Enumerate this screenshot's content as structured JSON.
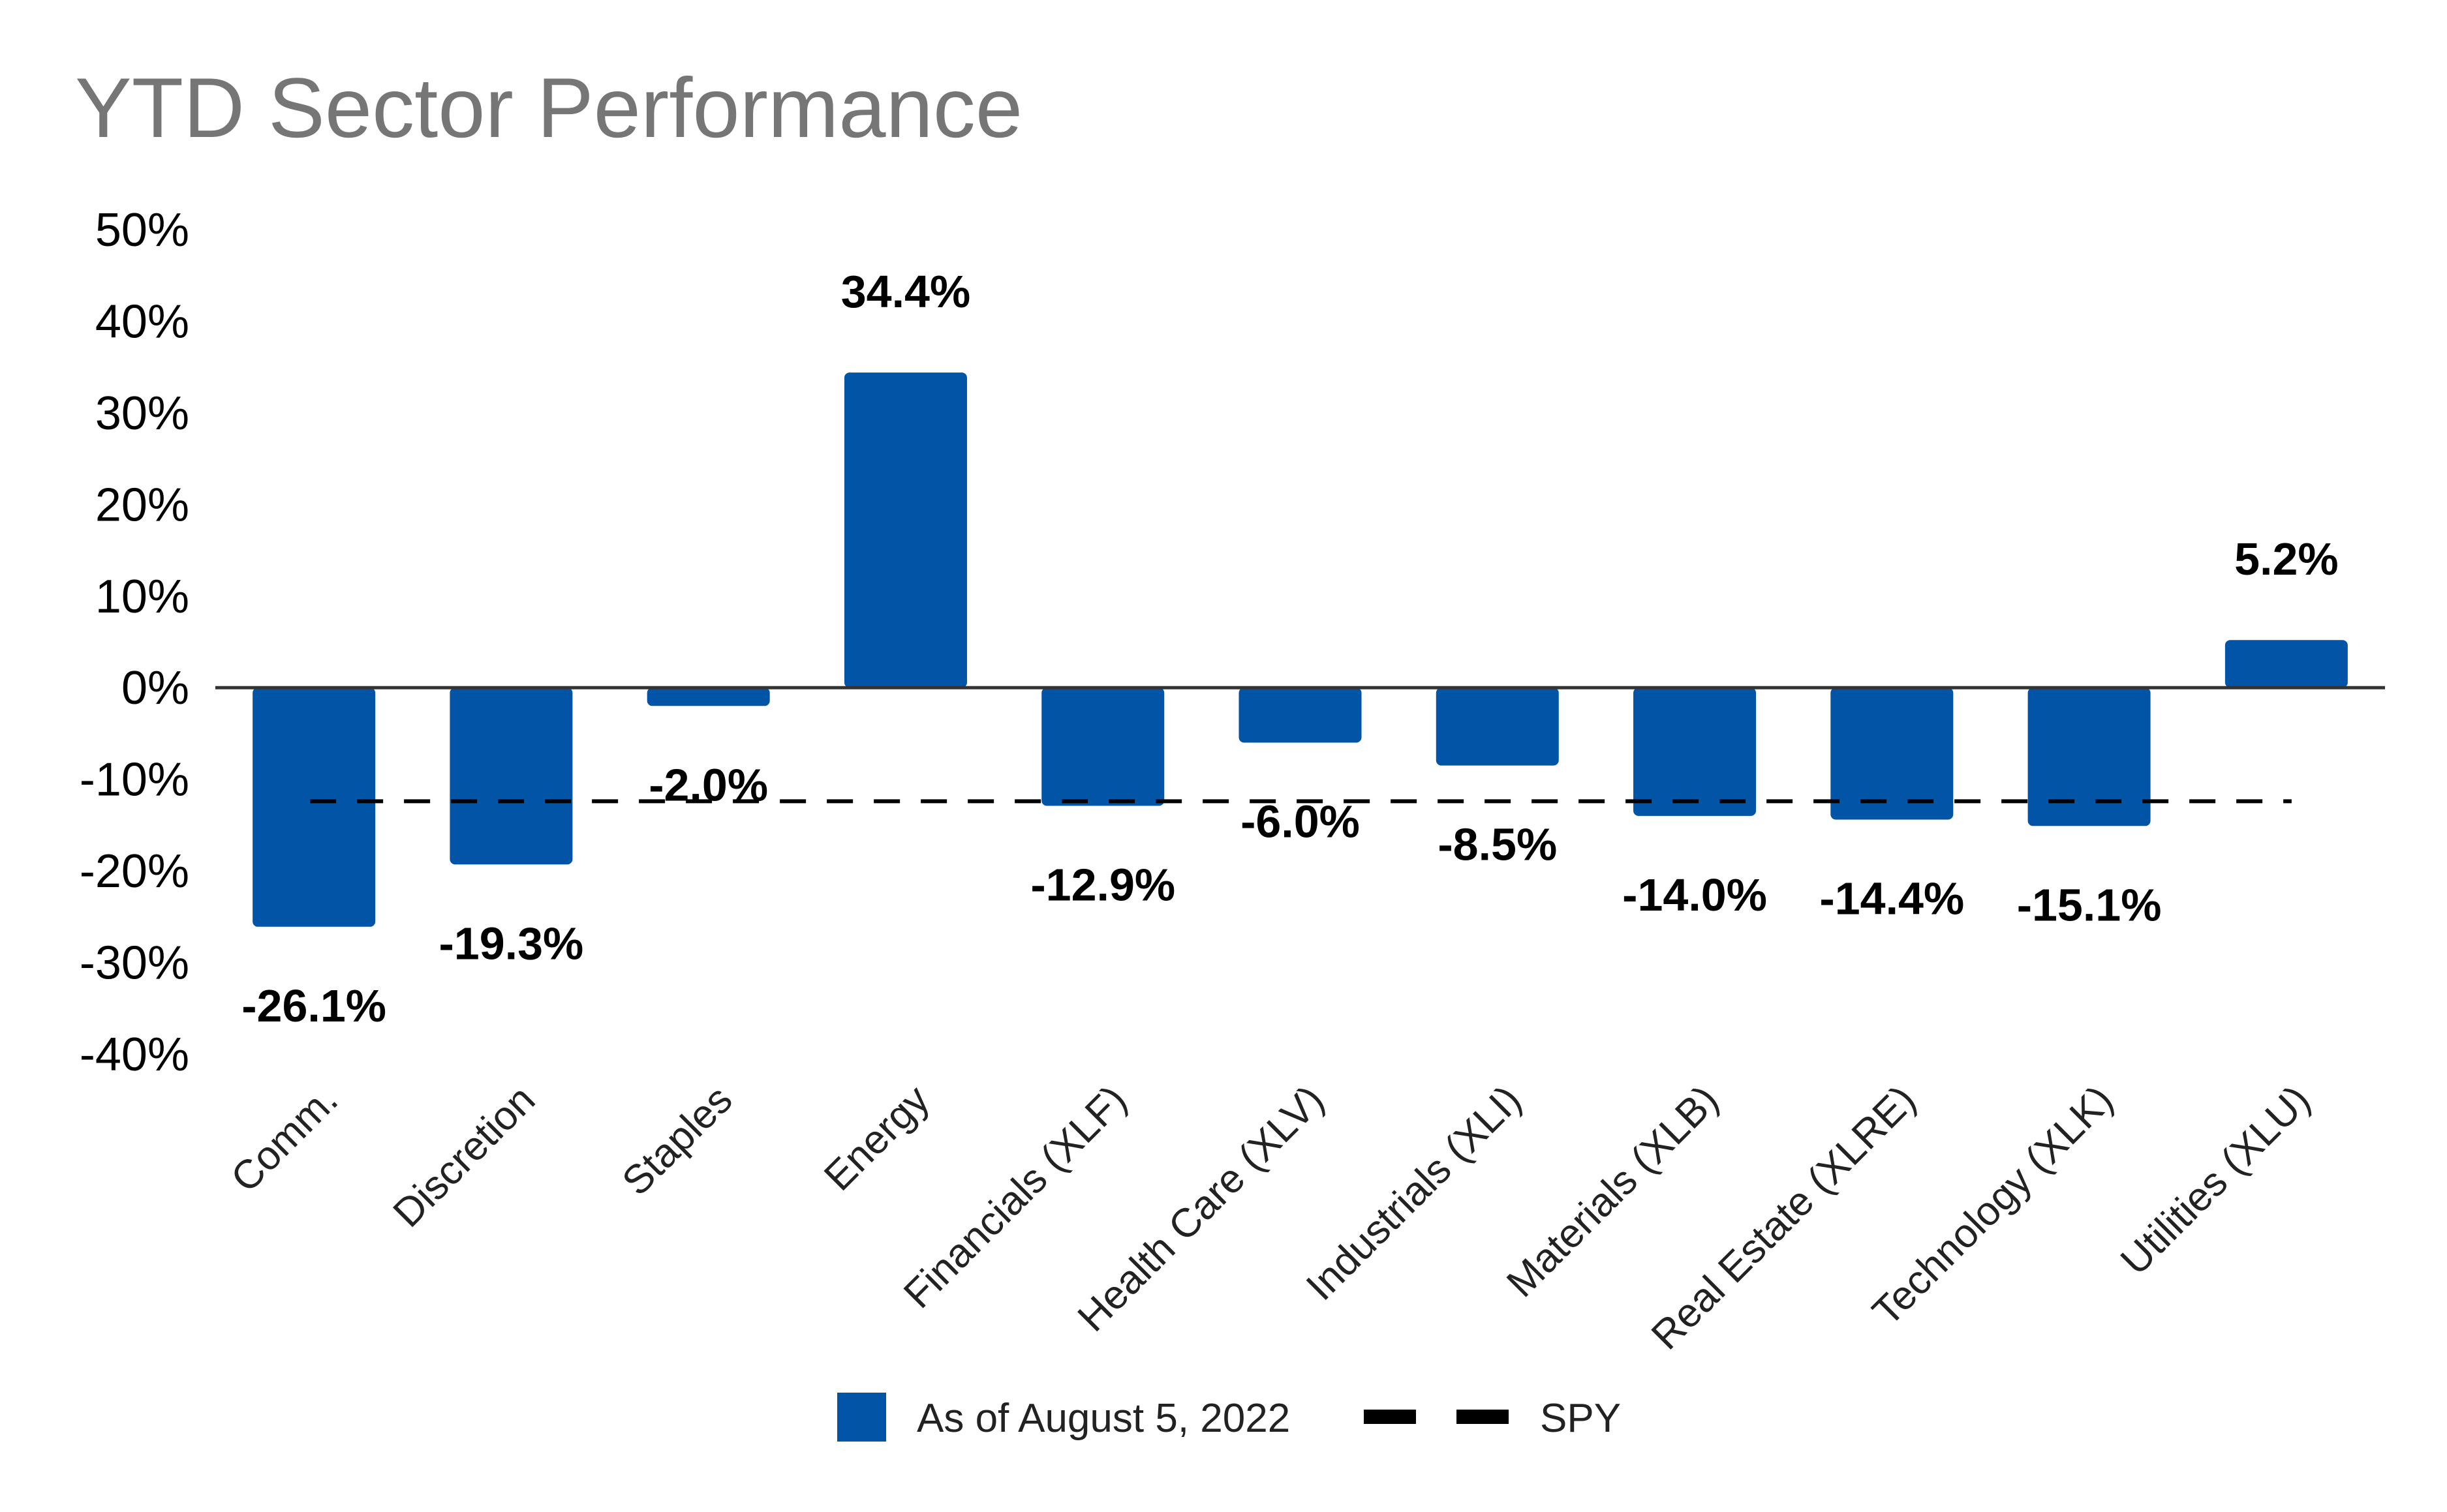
{
  "chart_data": {
    "type": "bar",
    "title": "YTD Sector Performance",
    "xlabel": "",
    "ylabel": "",
    "ylim": [
      -40,
      50
    ],
    "yticks": [
      50,
      40,
      30,
      20,
      10,
      0,
      -10,
      -20,
      -30,
      -40
    ],
    "ytick_labels": [
      "50%",
      "40%",
      "30%",
      "20%",
      "10%",
      "0%",
      "-10%",
      "-20%",
      "-30%",
      "-40%"
    ],
    "categories": [
      "Comm.",
      "Discretion",
      "Staples",
      "Energy",
      "Financials (XLF)",
      "Health Care (XLV)",
      "Industrials (XLI)",
      "Materials (XLB)",
      "Real Estate (XLRE)",
      "Technology (XLK)",
      "Utilities (XLU)"
    ],
    "series": [
      {
        "name": "As of August 5, 2022",
        "color": "#0254A6",
        "values": [
          -26.1,
          -19.3,
          -2.0,
          34.4,
          -12.9,
          -6.0,
          -8.5,
          -14.0,
          -14.4,
          -15.1,
          5.2
        ],
        "data_labels": [
          "-26.1%",
          "-19.3%",
          "-2.0%",
          "34.4%",
          "-12.9%",
          "-6.0%",
          "-8.5%",
          "-14.0%",
          "-14.4%",
          "-15.1%",
          "5.2%"
        ]
      }
    ],
    "reference_line": {
      "name": "SPY",
      "value": -12.4,
      "style": "dashed",
      "color": "#000000"
    },
    "grid": false,
    "legend_position": "bottom"
  }
}
